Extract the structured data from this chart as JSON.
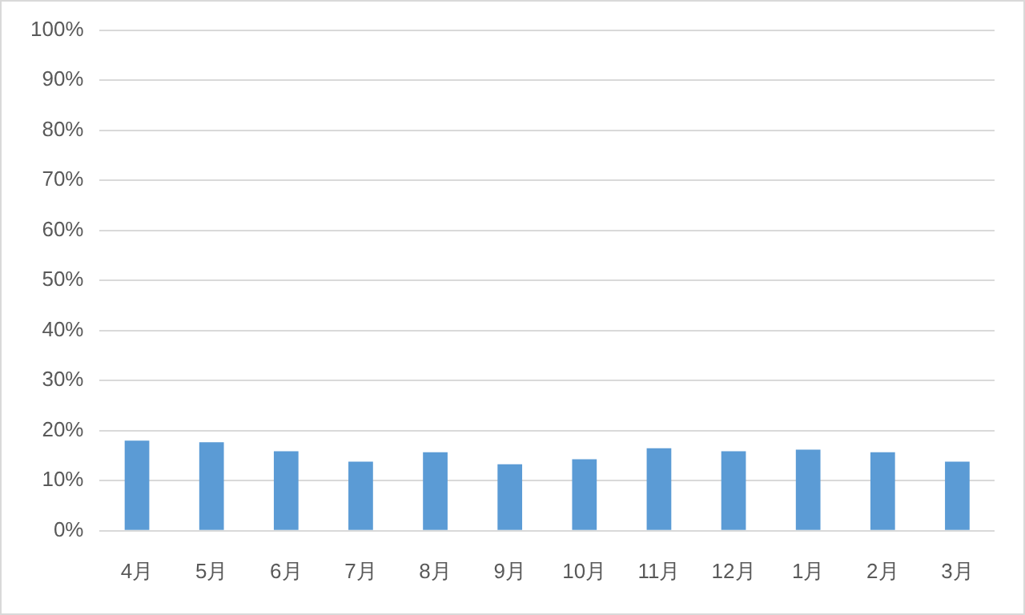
{
  "chart_data": {
    "type": "bar",
    "categories": [
      "4月",
      "5月",
      "6月",
      "7月",
      "8月",
      "9月",
      "10月",
      "11月",
      "12月",
      "1月",
      "2月",
      "3月"
    ],
    "values": [
      18.0,
      17.7,
      15.9,
      13.8,
      15.7,
      13.3,
      14.3,
      16.5,
      15.9,
      16.2,
      15.7,
      13.8
    ],
    "color": "#5b9bd5",
    "ylim": [
      0,
      100
    ],
    "yticks": [
      {
        "value": 0,
        "label": "0%"
      },
      {
        "value": 10,
        "label": "10%"
      },
      {
        "value": 20,
        "label": "20%"
      },
      {
        "value": 30,
        "label": "30%"
      },
      {
        "value": 40,
        "label": "40%"
      },
      {
        "value": 50,
        "label": "50%"
      },
      {
        "value": 60,
        "label": "60%"
      },
      {
        "value": 70,
        "label": "70%"
      },
      {
        "value": 80,
        "label": "80%"
      },
      {
        "value": 90,
        "label": "90%"
      },
      {
        "value": 100,
        "label": "100%"
      }
    ],
    "grid": "y",
    "legend": false
  }
}
